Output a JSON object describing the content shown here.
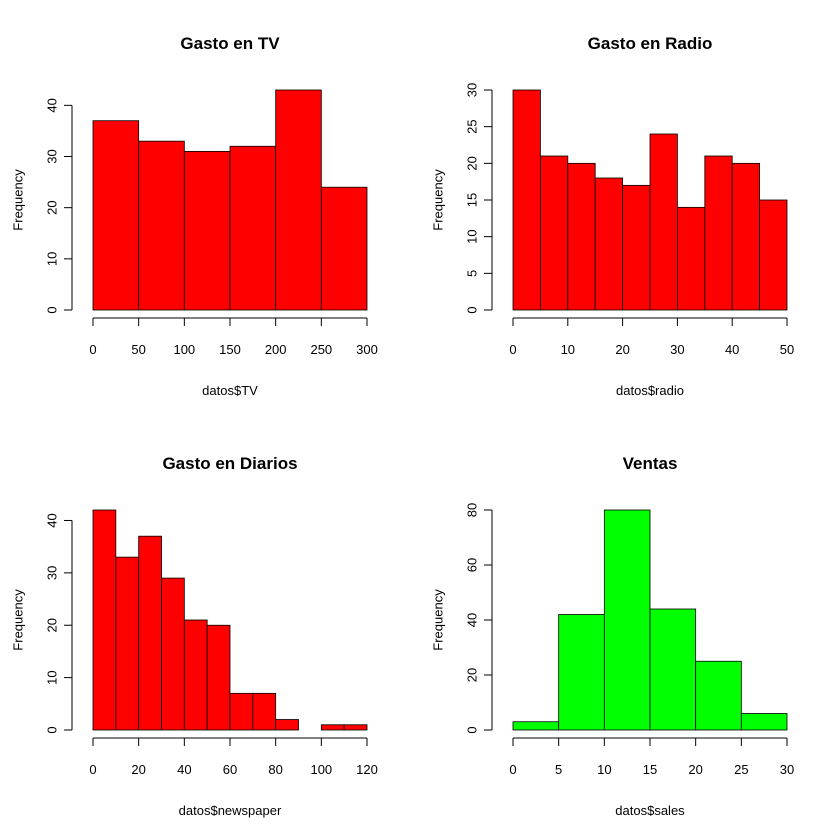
{
  "chart_data": [
    {
      "type": "bar",
      "title": "Gasto en TV",
      "xlabel": "datos$TV",
      "ylabel": "Frequency",
      "color": "#ff0000",
      "bins": [
        [
          0,
          50
        ],
        [
          50,
          100
        ],
        [
          100,
          150
        ],
        [
          150,
          200
        ],
        [
          200,
          250
        ],
        [
          250,
          300
        ]
      ],
      "values": [
        37,
        33,
        31,
        32,
        43,
        24
      ],
      "xlim": [
        0,
        300
      ],
      "xticks": [
        0,
        50,
        100,
        150,
        200,
        250,
        300
      ],
      "ylim": [
        0,
        43
      ],
      "yticks": [
        0,
        10,
        20,
        30,
        40
      ],
      "grid": false
    },
    {
      "type": "bar",
      "title": "Gasto en Radio",
      "xlabel": "datos$radio",
      "ylabel": "Frequency",
      "color": "#ff0000",
      "bins": [
        [
          0,
          5
        ],
        [
          5,
          10
        ],
        [
          10,
          15
        ],
        [
          15,
          20
        ],
        [
          20,
          25
        ],
        [
          25,
          30
        ],
        [
          30,
          35
        ],
        [
          35,
          40
        ],
        [
          40,
          45
        ],
        [
          45,
          50
        ]
      ],
      "values": [
        30,
        21,
        20,
        18,
        17,
        24,
        14,
        21,
        20,
        15
      ],
      "xlim": [
        0,
        50
      ],
      "xticks": [
        0,
        10,
        20,
        30,
        40,
        50
      ],
      "ylim": [
        0,
        30
      ],
      "yticks": [
        0,
        5,
        10,
        15,
        20,
        25,
        30
      ],
      "grid": false
    },
    {
      "type": "bar",
      "title": "Gasto en Diarios",
      "xlabel": "datos$newspaper",
      "ylabel": "Frequency",
      "color": "#ff0000",
      "bins": [
        [
          0,
          10
        ],
        [
          10,
          20
        ],
        [
          20,
          30
        ],
        [
          30,
          40
        ],
        [
          40,
          50
        ],
        [
          50,
          60
        ],
        [
          60,
          70
        ],
        [
          70,
          80
        ],
        [
          80,
          90
        ],
        [
          90,
          100
        ],
        [
          100,
          110
        ],
        [
          110,
          120
        ]
      ],
      "values": [
        42,
        33,
        37,
        29,
        21,
        20,
        7,
        7,
        2,
        0,
        1,
        1
      ],
      "xlim": [
        0,
        120
      ],
      "xticks": [
        0,
        20,
        40,
        60,
        80,
        100,
        120
      ],
      "ylim": [
        0,
        42
      ],
      "yticks": [
        0,
        10,
        20,
        30,
        40
      ],
      "grid": false
    },
    {
      "type": "bar",
      "title": "Ventas",
      "xlabel": "datos$sales",
      "ylabel": "Frequency",
      "color": "#00ff00",
      "bins": [
        [
          0,
          5
        ],
        [
          5,
          10
        ],
        [
          10,
          15
        ],
        [
          15,
          20
        ],
        [
          20,
          25
        ],
        [
          25,
          30
        ]
      ],
      "values": [
        3,
        42,
        80,
        44,
        25,
        6
      ],
      "xlim": [
        0,
        30
      ],
      "xticks": [
        0,
        5,
        10,
        15,
        20,
        25,
        30
      ],
      "ylim": [
        0,
        80
      ],
      "yticks": [
        0,
        20,
        40,
        60,
        80
      ],
      "grid": false
    }
  ]
}
